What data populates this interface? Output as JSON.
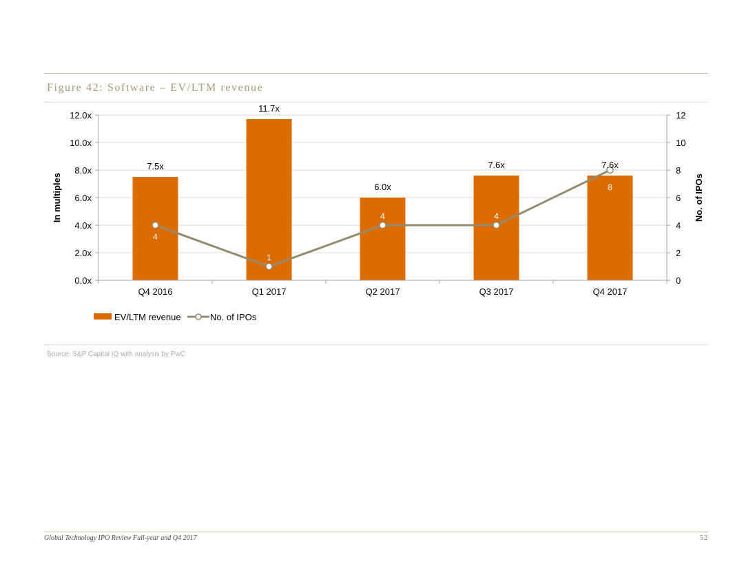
{
  "figure": {
    "title": "Figure 42: Software – EV/LTM revenue",
    "source": "Source: S&P Capital IQ with analysis by PwC"
  },
  "footer": {
    "document_title": "Global Technology IPO Review Full-year and Q4 2017",
    "page_number": "52"
  },
  "colors": {
    "bar": "#dc6b00",
    "line": "#958a6e",
    "grid": "#d9d9d9",
    "axis": "#a6a6a6"
  },
  "chart_data": {
    "type": "bar",
    "categories": [
      "Q4 2016",
      "Q1 2017",
      "Q2 2017",
      "Q3 2017",
      "Q4 2017"
    ],
    "series": [
      {
        "name": "EV/LTM revenue",
        "type": "bar",
        "axis": "left",
        "values": [
          7.5,
          11.7,
          6.0,
          7.6,
          7.6
        ],
        "labels": [
          "7.5x",
          "11.7x",
          "6.0x",
          "7.6x",
          "7.6x"
        ]
      },
      {
        "name": "No. of IPOs",
        "type": "line",
        "axis": "right",
        "values": [
          4,
          1,
          4,
          4,
          8
        ],
        "labels": [
          "4",
          "1",
          "4",
          "4",
          "8"
        ]
      }
    ],
    "ylabel": "In multiples",
    "y2label": "No. of IPOs",
    "ylim": [
      0,
      12
    ],
    "y2lim": [
      0,
      12
    ],
    "yticks": [
      "0.0x",
      "2.0x",
      "4.0x",
      "6.0x",
      "8.0x",
      "10.0x",
      "12.0x"
    ],
    "y2ticks": [
      "0",
      "2",
      "4",
      "6",
      "8",
      "10",
      "12"
    ],
    "grid": true,
    "legend": "bottom-left"
  }
}
